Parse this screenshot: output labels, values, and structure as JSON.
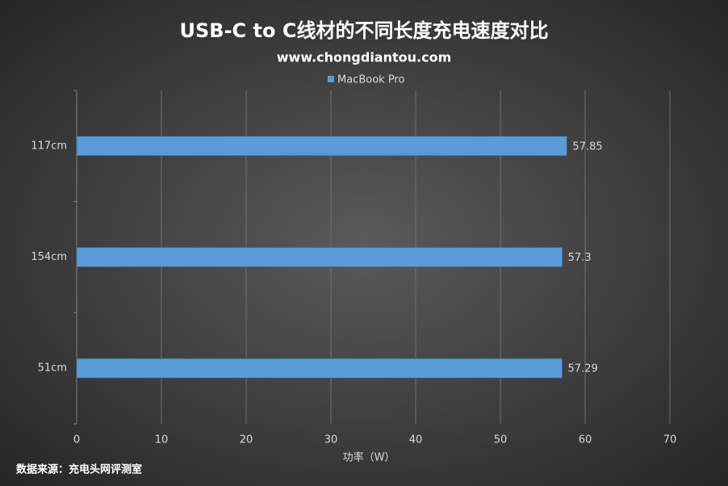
{
  "chart_data": {
    "type": "bar",
    "orientation": "horizontal",
    "title": "USB-C to C线材的不同长度充电速度对比",
    "subtitle": "www.chongdiantou.com",
    "source": "数据来源：充电头网评测室",
    "x_label": "功率（W）",
    "categories": [
      "117cm",
      "154cm",
      "51cm"
    ],
    "series": [
      {
        "name": "MacBook Pro",
        "color": "#5b9bd5",
        "values": [
          57.85,
          57.3,
          57.29
        ]
      }
    ],
    "xlim": [
      0,
      70
    ],
    "xticks": [
      0,
      10,
      20,
      30,
      40,
      50,
      60,
      70
    ],
    "grid": true,
    "legend": "top"
  }
}
